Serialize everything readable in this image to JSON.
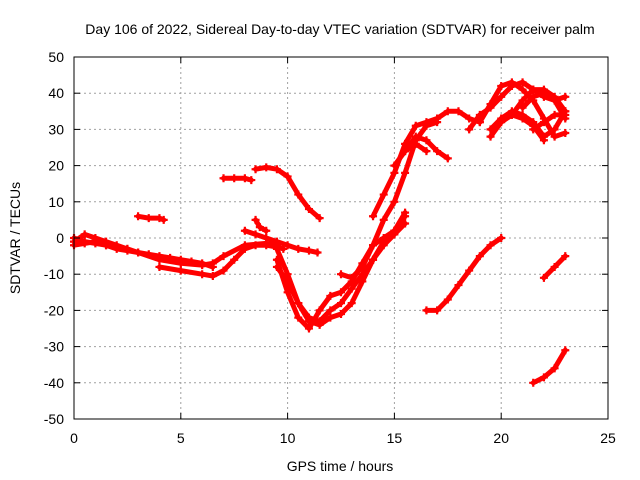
{
  "chart_data": {
    "type": "scatter",
    "title": "Day 106 of 2022, Sidereal Day-to-day VTEC variation (SDTVAR) for receiver palm",
    "xlabel": "GPS time / hours",
    "ylabel": "SDTVAR / TECUs",
    "xlim": [
      0,
      25
    ],
    "ylim": [
      -50,
      50
    ],
    "xticks": [
      0,
      5,
      10,
      15,
      20,
      25
    ],
    "yticks": [
      -50,
      -40,
      -30,
      -20,
      -10,
      0,
      10,
      20,
      30,
      40,
      50
    ],
    "xtick_labels": [
      "0",
      "5",
      "10",
      "15",
      "20",
      "25"
    ],
    "ytick_labels": [
      "-50",
      "-40",
      "-30",
      "-20",
      "-10",
      "0",
      "10",
      "20",
      "30",
      "40",
      "50"
    ],
    "grid": true,
    "marker_color": "#ff0000",
    "series": [
      {
        "name": "s1",
        "x": [
          0.0,
          0.5,
          1.0,
          1.5,
          2.0,
          2.5,
          3.0,
          3.5,
          4.0,
          4.5,
          5.0,
          5.5,
          6.0,
          6.5
        ],
        "y": [
          -2,
          -1.5,
          -1,
          -2,
          -3,
          -3.5,
          -4,
          -4.5,
          -5,
          -5.5,
          -6,
          -6.5,
          -7,
          -8
        ]
      },
      {
        "name": "s2",
        "x": [
          0.0,
          0.5,
          1.0,
          1.5,
          2.0,
          2.5,
          3.0,
          4.0,
          5.0,
          6.0,
          6.5,
          7.0,
          8.0,
          9.0,
          9.5
        ],
        "y": [
          0,
          -1,
          -1.5,
          -2,
          -2.5,
          -3,
          -4,
          -6,
          -7,
          -7.5,
          -7,
          -5,
          -2,
          -1.5,
          -2
        ]
      },
      {
        "name": "s3",
        "x": [
          0.0,
          0.5,
          1.0,
          1.5,
          2.0,
          2.5
        ],
        "y": [
          -1,
          1,
          0,
          -1,
          -2,
          -3
        ]
      },
      {
        "name": "s4",
        "x": [
          3.0,
          3.5,
          4.0,
          4.2
        ],
        "y": [
          6,
          5.5,
          5.5,
          5
        ]
      },
      {
        "name": "s5",
        "x": [
          4.0,
          5.0,
          6.0,
          6.5,
          7.0,
          7.5,
          8.0,
          8.5,
          9.0,
          9.5,
          9.8
        ],
        "y": [
          -8,
          -9,
          -10,
          -10.5,
          -9,
          -6,
          -3,
          -2,
          -2,
          -2.5,
          -3
        ]
      },
      {
        "name": "s6",
        "x": [
          7.0,
          7.5,
          8.0,
          8.3
        ],
        "y": [
          16.5,
          16.5,
          16.5,
          16
        ]
      },
      {
        "name": "s7",
        "x": [
          8.0,
          8.5,
          9.0,
          9.5,
          10.0,
          10.5,
          11.0,
          11.4
        ],
        "y": [
          2,
          1,
          0,
          -1,
          -2,
          -3,
          -3.5,
          -4
        ]
      },
      {
        "name": "s8",
        "x": [
          8.5,
          8.7,
          9.0
        ],
        "y": [
          5,
          3,
          2
        ]
      },
      {
        "name": "s9",
        "x": [
          8.5,
          9.0,
          9.5,
          10.0,
          10.5,
          11.0,
          11.5
        ],
        "y": [
          19,
          19.5,
          19,
          17,
          12,
          8,
          5.5
        ]
      },
      {
        "name": "s10",
        "x": [
          9.5,
          10.0,
          10.5,
          11.0,
          11.5,
          12.0,
          12.5,
          13.0,
          13.5,
          14.0,
          14.5,
          15.0,
          15.5
        ],
        "y": [
          -6,
          -15,
          -22,
          -25,
          -20,
          -16,
          -15,
          -12,
          -7,
          -2,
          0,
          2,
          6
        ]
      },
      {
        "name": "s11",
        "x": [
          9.5,
          10.0,
          10.5,
          11.0,
          11.5,
          12.0,
          12.5,
          13.0,
          13.5,
          14.0,
          14.5,
          15.0,
          15.5
        ],
        "y": [
          -8,
          -12,
          -18,
          -22,
          -23,
          -20,
          -18,
          -14,
          -10,
          -6,
          -2,
          1,
          4
        ]
      },
      {
        "name": "s12",
        "x": [
          9.5,
          10.0,
          10.5,
          11.0,
          11.5,
          12.0,
          12.5,
          13.0,
          13.5,
          14.0,
          14.5,
          15.0,
          15.5
        ],
        "y": [
          -3,
          -10,
          -18,
          -23,
          -24,
          -22,
          -21,
          -18,
          -12,
          -6,
          -1,
          2,
          7
        ]
      },
      {
        "name": "s13",
        "x": [
          12.5,
          13.0,
          13.5,
          14.0,
          14.5,
          15.0,
          15.5,
          16.0,
          16.5,
          17.0
        ],
        "y": [
          -10,
          -11,
          -8,
          -2,
          5,
          10,
          18,
          27,
          31,
          32
        ]
      },
      {
        "name": "s14",
        "x": [
          14.0,
          14.5,
          15.0,
          15.5,
          16.0,
          16.5,
          17.0,
          17.5,
          18.0,
          18.5,
          19.0
        ],
        "y": [
          6,
          12,
          18,
          26,
          31,
          32,
          33,
          35,
          35,
          33,
          32
        ]
      },
      {
        "name": "s15",
        "x": [
          15.0,
          15.5,
          16.0,
          16.5,
          17.0,
          17.5
        ],
        "y": [
          20,
          24,
          28,
          27,
          24,
          22
        ]
      },
      {
        "name": "s16",
        "x": [
          15.5,
          16.0,
          16.5
        ],
        "y": [
          24,
          26,
          24
        ]
      },
      {
        "name": "s17",
        "x": [
          16.5,
          17.0,
          17.5,
          18.0,
          18.5,
          19.0,
          19.5,
          20.0
        ],
        "y": [
          -20,
          -20,
          -17,
          -13,
          -9,
          -5,
          -2,
          0
        ]
      },
      {
        "name": "s18",
        "x": [
          18.5,
          19.0,
          19.5,
          20.0,
          20.5,
          21.0,
          21.5,
          22.0,
          22.5,
          23.0
        ],
        "y": [
          30,
          34,
          36,
          39,
          42,
          43,
          41,
          39,
          38,
          39
        ]
      },
      {
        "name": "s19",
        "x": [
          19.0,
          19.5,
          20.0,
          20.5,
          21.0,
          21.5,
          22.0,
          22.5,
          23.0
        ],
        "y": [
          32,
          37,
          42,
          43,
          41,
          38,
          33,
          28,
          29
        ]
      },
      {
        "name": "s20",
        "x": [
          19.5,
          20.0,
          20.5,
          21.0,
          21.5,
          22.0,
          22.5,
          23.0
        ],
        "y": [
          30,
          33,
          35,
          34,
          32,
          28,
          30,
          35
        ]
      },
      {
        "name": "s21",
        "x": [
          19.5,
          20.0,
          20.5,
          21.0,
          21.5,
          22.0
        ],
        "y": [
          28,
          32,
          34,
          33,
          31,
          27
        ]
      },
      {
        "name": "s22",
        "x": [
          20.5,
          21.0,
          21.5,
          22.0,
          22.5,
          23.0
        ],
        "y": [
          34,
          38,
          41,
          41,
          39,
          35
        ]
      },
      {
        "name": "s23",
        "x": [
          21.0,
          21.5,
          22.0,
          22.5,
          23.0
        ],
        "y": [
          36,
          39,
          40,
          38,
          33
        ]
      },
      {
        "name": "s24",
        "x": [
          21.5,
          22.0,
          22.5,
          23.0
        ],
        "y": [
          30,
          32,
          34,
          34
        ]
      },
      {
        "name": "s25",
        "x": [
          22.0,
          22.5,
          23.0
        ],
        "y": [
          -11,
          -8,
          -5
        ]
      },
      {
        "name": "s26",
        "x": [
          21.5,
          22.0,
          22.5,
          23.0
        ],
        "y": [
          -40,
          -38.5,
          -36,
          -31
        ]
      }
    ]
  }
}
